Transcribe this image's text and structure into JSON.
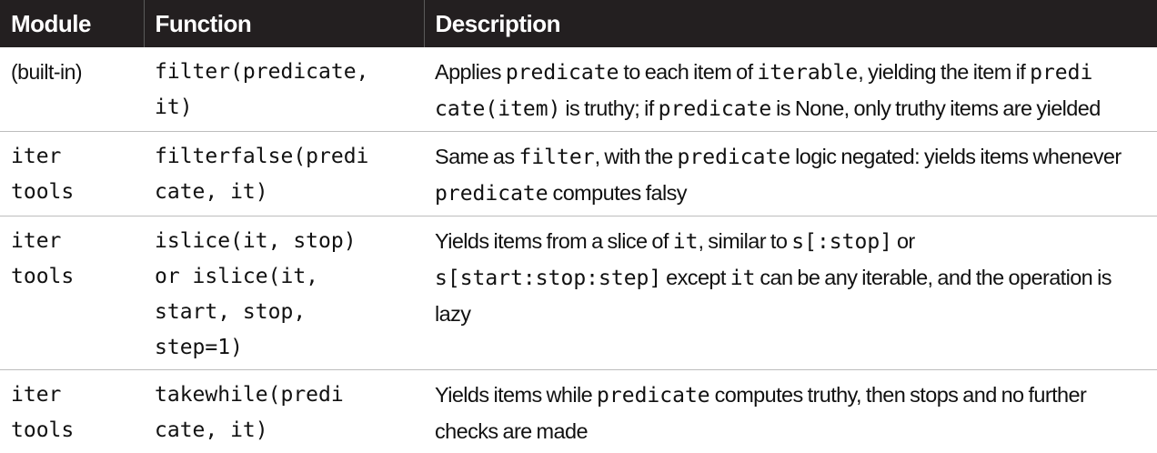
{
  "headers": {
    "module": "Module",
    "function": "Function",
    "description": "Description"
  },
  "rows": [
    {
      "module": [
        "(built-in)"
      ],
      "function": [
        "filter(predicate,",
        "it)"
      ],
      "description": [
        [
          {
            "t": "Applies ",
            "code": false
          },
          {
            "t": "predicate",
            "code": true
          },
          {
            "t": " to each item of ",
            "code": false
          },
          {
            "t": "iterable",
            "code": true
          },
          {
            "t": ", yielding the item if ",
            "code": false
          },
          {
            "t": "predi",
            "code": true
          }
        ],
        [
          {
            "t": "cate(item)",
            "code": true
          },
          {
            "t": " is truthy; if ",
            "code": false
          },
          {
            "t": "predicate",
            "code": true
          },
          {
            "t": " is None, only truthy items are yielded",
            "code": false
          }
        ]
      ]
    },
    {
      "module": [
        "iter",
        "tools"
      ],
      "function": [
        "filterfalse(predi",
        "cate, it)"
      ],
      "description": [
        [
          {
            "t": "Same as ",
            "code": false
          },
          {
            "t": "filter",
            "code": true
          },
          {
            "t": ", with the ",
            "code": false
          },
          {
            "t": "predicate",
            "code": true
          },
          {
            "t": " logic negated: yields items whenever",
            "code": false
          }
        ],
        [
          {
            "t": "predicate",
            "code": true
          },
          {
            "t": " computes falsy",
            "code": false
          }
        ]
      ]
    },
    {
      "module": [
        "iter",
        "tools"
      ],
      "function": [
        "islice(it, stop)",
        "or islice(it,",
        "start, stop,",
        "step=1)"
      ],
      "description": [
        [
          {
            "t": "Yields items from a slice of ",
            "code": false
          },
          {
            "t": "it",
            "code": true
          },
          {
            "t": ", similar to ",
            "code": false
          },
          {
            "t": "s[:stop]",
            "code": true
          },
          {
            "t": " or",
            "code": false
          }
        ],
        [
          {
            "t": "s[start:stop:step]",
            "code": true
          },
          {
            "t": " except ",
            "code": false
          },
          {
            "t": "it",
            "code": true
          },
          {
            "t": " can be any iterable, and the operation is",
            "code": false
          }
        ],
        [
          {
            "t": "lazy",
            "code": false
          }
        ]
      ]
    },
    {
      "module": [
        "iter",
        "tools"
      ],
      "function": [
        "takewhile(predi",
        "cate, it)"
      ],
      "description": [
        [
          {
            "t": "Yields items while ",
            "code": false
          },
          {
            "t": "predicate",
            "code": true
          },
          {
            "t": " computes truthy, then stops and no further",
            "code": false
          }
        ],
        [
          {
            "t": "checks are made",
            "code": false
          }
        ]
      ]
    }
  ]
}
